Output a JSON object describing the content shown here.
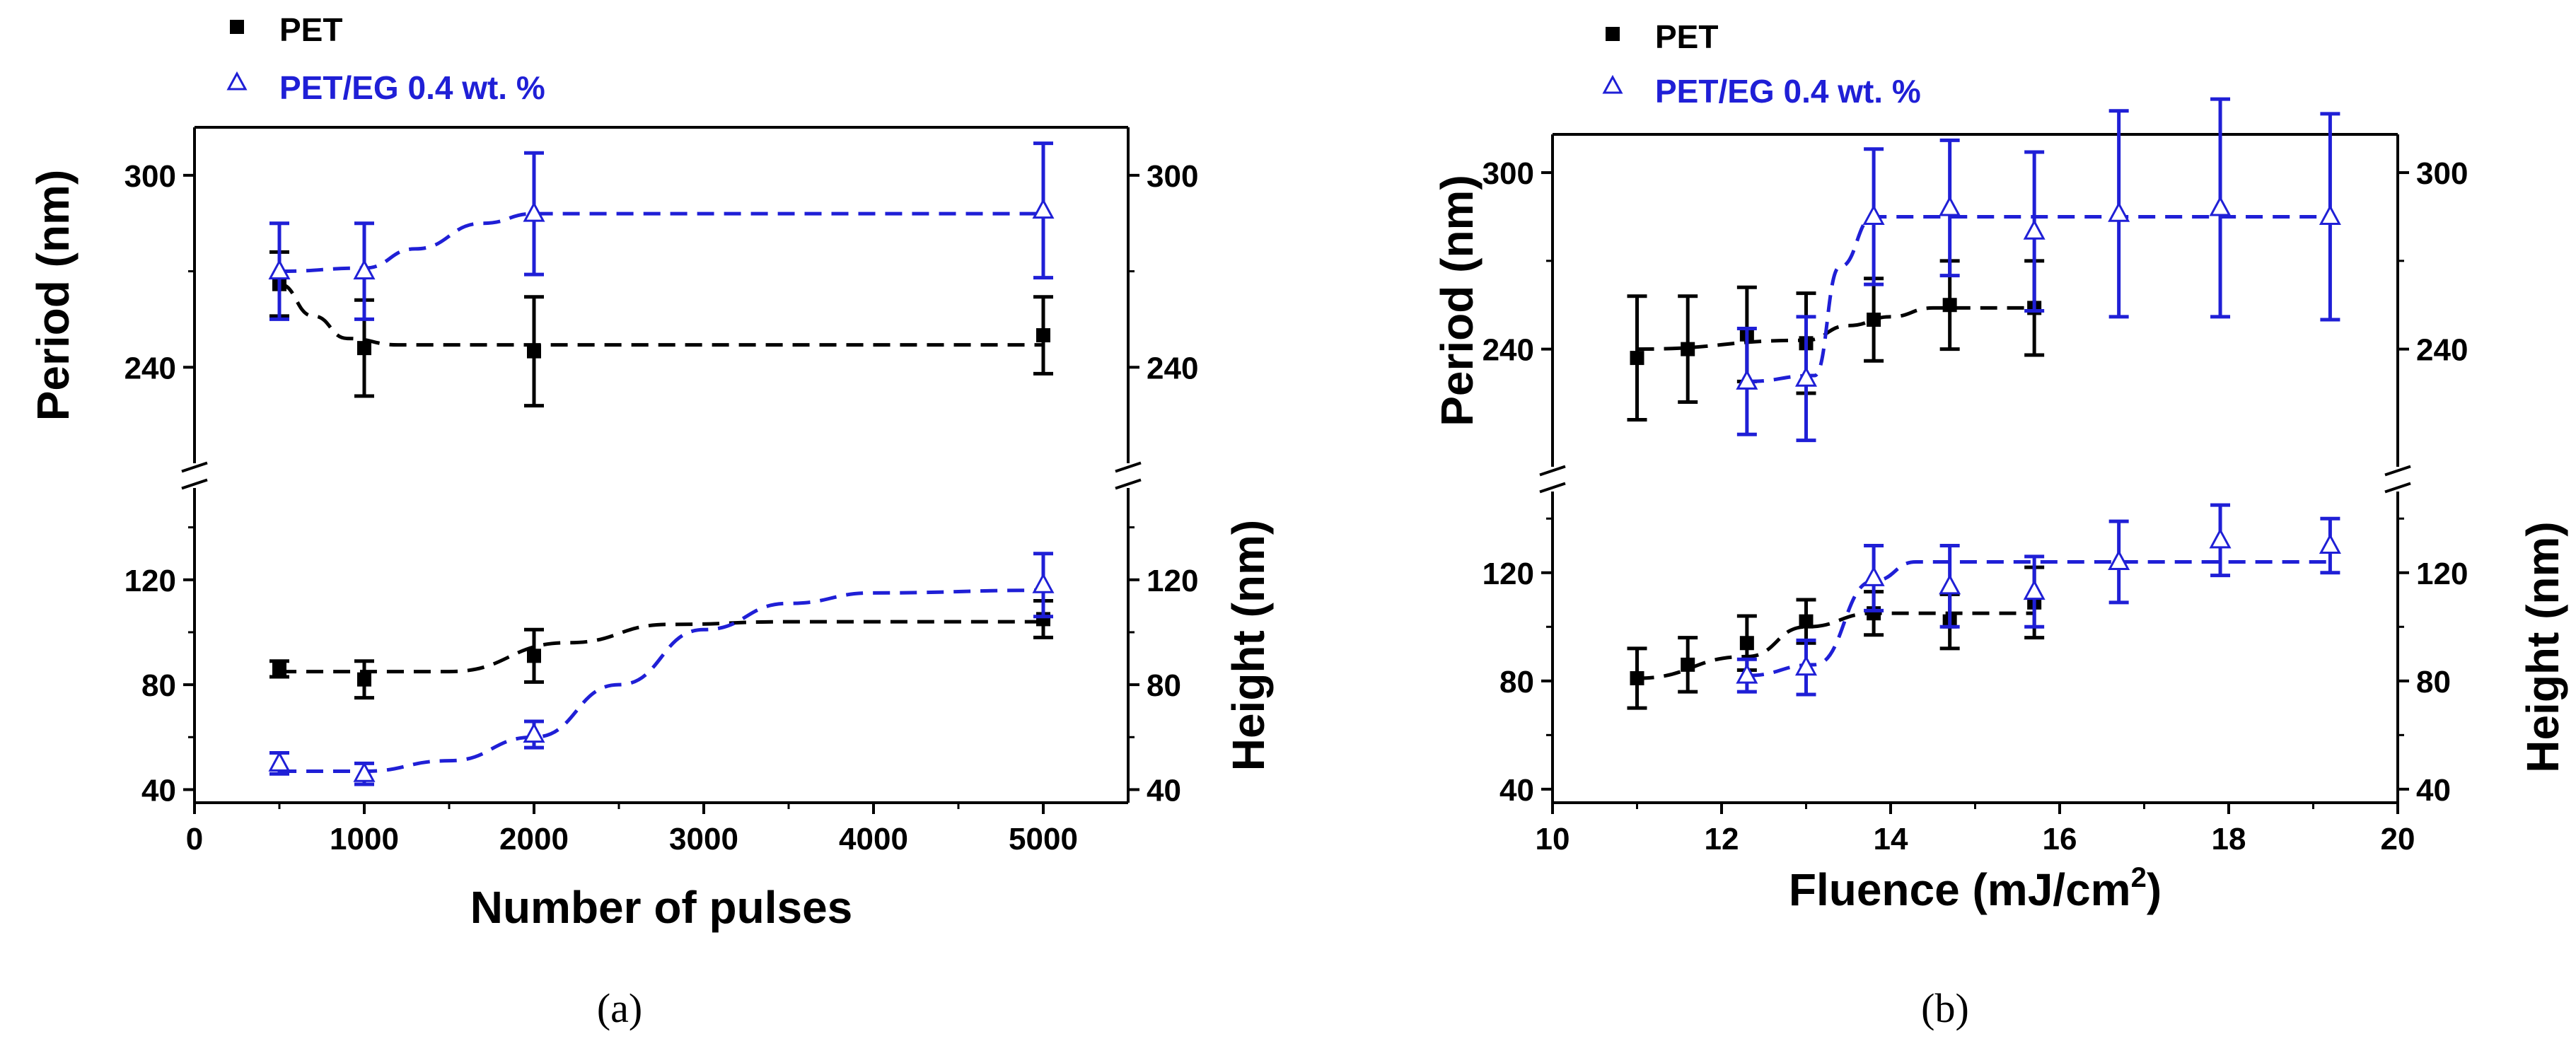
{
  "colors": {
    "pet": "#000000",
    "peteg": "#1f1fd6"
  },
  "chart_data": [
    {
      "type": "scatter",
      "panel_label": "(a)",
      "xlabel": "Number of pulses",
      "ylabel_left": "Period (nm)",
      "ylabel_right": "Height (nm)",
      "xlim": [
        0,
        5500
      ],
      "xticks": [
        0,
        1000,
        2000,
        3000,
        4000,
        5000
      ],
      "xtick_labels": [
        "0",
        "1000",
        "2000",
        "3000",
        "4000",
        "5000"
      ],
      "period_ylim": [
        210,
        315
      ],
      "period_ticks": [
        240,
        300
      ],
      "period_tick_labels": [
        "240",
        "300"
      ],
      "height_ylim": [
        35,
        155
      ],
      "height_ticks": [
        40,
        80,
        120
      ],
      "height_tick_labels": [
        "40",
        "80",
        "120"
      ],
      "legend": [
        "PET",
        "PET/EG 0.4 wt. %"
      ],
      "series": [
        {
          "name": "PET",
          "quantity": "period",
          "marker": "square",
          "x": [
            500,
            1000,
            2000,
            5000
          ],
          "y": [
            266,
            246,
            245,
            250
          ],
          "err": [
            10,
            15,
            17,
            12
          ],
          "fit_x": [
            500,
            700,
            900,
            1200,
            2000,
            5000
          ],
          "fit_y": [
            266,
            256,
            249,
            247,
            247,
            247
          ]
        },
        {
          "name": "PET/EG 0.4 wt. %",
          "quantity": "period",
          "marker": "triangle",
          "x": [
            500,
            1000,
            2000,
            5000
          ],
          "y": [
            270,
            270,
            288,
            289
          ],
          "err": [
            15,
            15,
            19,
            21
          ],
          "fit_x": [
            500,
            1000,
            1300,
            1700,
            2000,
            5000
          ],
          "fit_y": [
            270,
            271,
            277,
            285,
            288,
            288
          ]
        },
        {
          "name": "PET",
          "quantity": "height",
          "marker": "square",
          "x": [
            500,
            1000,
            2000,
            5000
          ],
          "y": [
            86,
            82,
            91,
            105
          ],
          "err": [
            3,
            7,
            10,
            7
          ],
          "fit_x": [
            500,
            1500,
            2200,
            2800,
            3500,
            5000
          ],
          "fit_y": [
            85,
            85,
            96,
            103,
            104,
            104
          ]
        },
        {
          "name": "PET/EG 0.4 wt. %",
          "quantity": "height",
          "marker": "triangle",
          "x": [
            500,
            1000,
            2000,
            5000
          ],
          "y": [
            50,
            46,
            61,
            118
          ],
          "err": [
            4,
            4,
            5,
            12
          ],
          "fit_x": [
            500,
            1000,
            1500,
            2000,
            2500,
            3000,
            3500,
            4000,
            5000
          ],
          "fit_y": [
            47,
            47,
            51,
            60,
            80,
            101,
            111,
            115,
            116
          ]
        }
      ]
    },
    {
      "type": "scatter",
      "panel_label": "(b)",
      "xlabel": "Fluence (mJ/cm",
      "xlabel_sup": "2",
      "xlabel_end": ")",
      "ylabel_left": "Period (nm)",
      "ylabel_right": "Height (nm)",
      "xlim": [
        10,
        20
      ],
      "xticks": [
        10,
        12,
        14,
        16,
        18,
        20
      ],
      "xtick_labels": [
        "10",
        "12",
        "14",
        "16",
        "18",
        "20"
      ],
      "period_ylim": [
        200,
        313
      ],
      "period_ticks": [
        240,
        300
      ],
      "period_tick_labels": [
        "240",
        "300"
      ],
      "height_ylim": [
        35,
        150
      ],
      "height_ticks": [
        40,
        80,
        120
      ],
      "height_tick_labels": [
        "40",
        "80",
        "120"
      ],
      "legend": [
        "PET",
        "PET/EG 0.4 wt. %"
      ],
      "series": [
        {
          "name": "PET",
          "quantity": "period",
          "marker": "square",
          "x": [
            11.0,
            11.6,
            12.3,
            13.0,
            13.8,
            14.7,
            15.7
          ],
          "y": [
            237,
            240,
            245,
            242,
            250,
            255,
            254
          ],
          "err": [
            21,
            18,
            16,
            17,
            14,
            15,
            16
          ],
          "fit_x": [
            11.0,
            13.0,
            13.5,
            14.0,
            14.5,
            15.7
          ],
          "fit_y": [
            240,
            243,
            248,
            251,
            254,
            254
          ]
        },
        {
          "name": "PET/EG 0.4 wt. %",
          "quantity": "period",
          "marker": "triangle",
          "x": [
            12.3,
            13.0,
            13.8,
            14.7,
            15.7,
            16.7,
            17.9,
            19.2
          ],
          "y": [
            229,
            230,
            285,
            288,
            280,
            286,
            288,
            285
          ],
          "err": [
            18,
            21,
            23,
            23,
            27,
            35,
            37,
            35
          ],
          "fit_x": [
            12.3,
            13.1,
            13.4,
            13.8,
            19.2
          ],
          "fit_y": [
            229,
            231,
            268,
            285,
            285
          ]
        },
        {
          "name": "PET",
          "quantity": "height",
          "marker": "square",
          "x": [
            11.0,
            11.6,
            12.3,
            13.0,
            13.8,
            14.7,
            15.7
          ],
          "y": [
            81,
            86,
            94,
            102,
            105,
            102,
            109
          ],
          "err": [
            11,
            10,
            10,
            8,
            8,
            10,
            13
          ],
          "fit_x": [
            11.0,
            12.3,
            13.0,
            13.8,
            15.7
          ],
          "fit_y": [
            81,
            89,
            100,
            105,
            105
          ]
        },
        {
          "name": "PET/EG 0.4 wt. %",
          "quantity": "height",
          "marker": "triangle",
          "x": [
            12.3,
            13.0,
            13.8,
            14.7,
            15.7,
            16.7,
            17.9,
            19.2
          ],
          "y": [
            82,
            85,
            118,
            115,
            113,
            124,
            132,
            130
          ],
          "err": [
            6,
            10,
            12,
            15,
            13,
            15,
            13,
            10
          ],
          "fit_x": [
            12.3,
            13.1,
            13.8,
            14.3,
            19.2
          ],
          "fit_y": [
            82,
            86,
            117,
            124,
            124
          ]
        }
      ]
    }
  ]
}
